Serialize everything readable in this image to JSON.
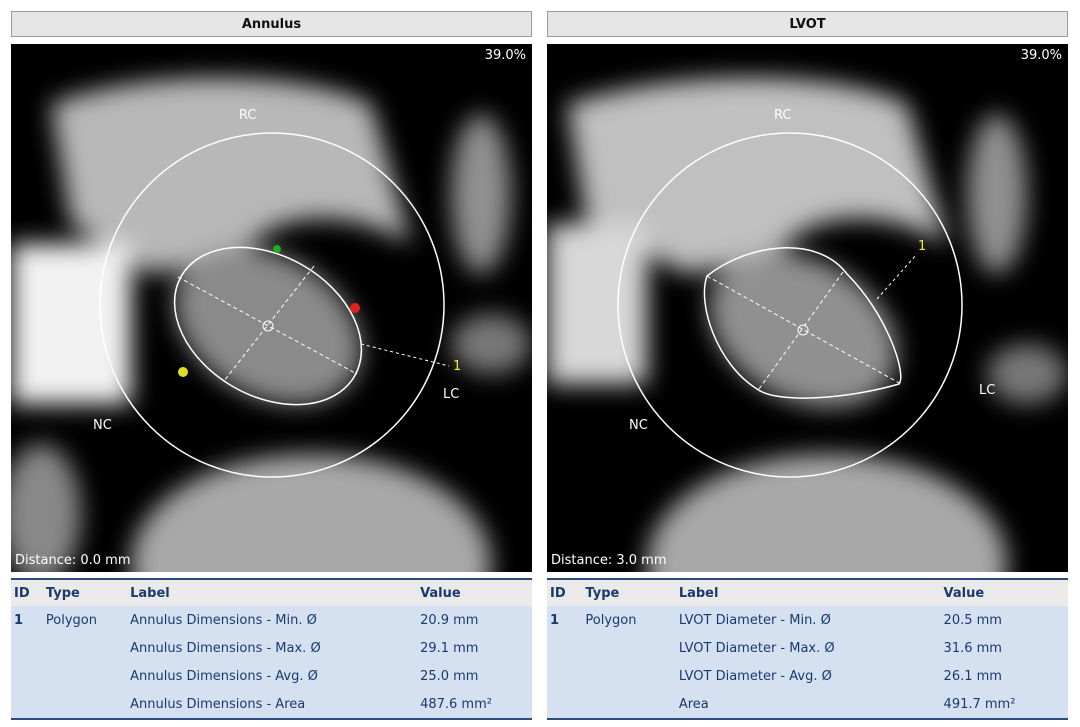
{
  "panels": [
    {
      "title": "Annulus",
      "zoom": "39.0%",
      "distance": "Distance: 0.0 mm",
      "markers": {
        "top": "RC",
        "left": "NC",
        "right": "LC",
        "id": "1"
      },
      "table": {
        "headers": [
          "ID",
          "Type",
          "Label",
          "Value"
        ],
        "rows": [
          [
            "1",
            "Polygon",
            "Annulus Dimensions - Min. Ø",
            "20.9 mm"
          ],
          [
            "",
            "",
            "Annulus Dimensions - Max. Ø",
            "29.1 mm"
          ],
          [
            "",
            "",
            "Annulus Dimensions - Avg. Ø",
            "25.0 mm"
          ],
          [
            "",
            "",
            "Annulus Dimensions - Area",
            "487.6 mm²"
          ]
        ]
      }
    },
    {
      "title": "LVOT",
      "zoom": "39.0%",
      "distance": "Distance: 3.0 mm",
      "markers": {
        "top": "RC",
        "left": "NC",
        "right": "LC",
        "id": "1"
      },
      "table": {
        "headers": [
          "ID",
          "Type",
          "Label",
          "Value"
        ],
        "rows": [
          [
            "1",
            "Polygon",
            "LVOT Diameter - Min. Ø",
            "20.5 mm"
          ],
          [
            "",
            "",
            "LVOT Diameter - Max. Ø",
            "31.6 mm"
          ],
          [
            "",
            "",
            "LVOT Diameter - Avg. Ø",
            "26.1 mm"
          ],
          [
            "",
            "",
            "Area",
            "491.7 mm²"
          ]
        ]
      }
    }
  ],
  "colors": {
    "header_text": "#1a3a6e",
    "row_bg": "#d5e0f0",
    "border": "#2a4a80"
  }
}
